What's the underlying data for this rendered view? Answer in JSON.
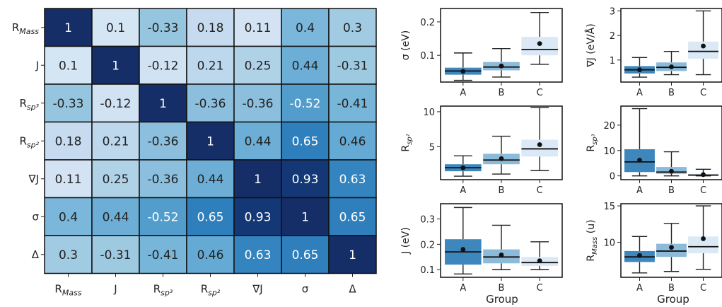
{
  "chart_data": [
    {
      "type": "heatmap",
      "row_labels": [
        "R_Mass",
        "J",
        "R_sp³",
        "R_sp²",
        "∇J",
        "σ",
        "Δ"
      ],
      "col_labels": [
        "R_Mass",
        "J",
        "R_sp³",
        "R_sp²",
        "∇J",
        "σ",
        "Δ"
      ],
      "values": [
        [
          1,
          0.1,
          -0.33,
          0.18,
          0.11,
          0.4,
          0.3
        ],
        [
          0.1,
          1,
          -0.12,
          0.21,
          0.25,
          0.44,
          -0.31
        ],
        [
          -0.33,
          -0.12,
          1,
          -0.36,
          -0.36,
          -0.52,
          -0.41
        ],
        [
          0.18,
          0.21,
          -0.36,
          1,
          0.44,
          0.65,
          0.46
        ],
        [
          0.11,
          0.25,
          -0.36,
          0.44,
          1,
          0.93,
          0.63
        ],
        [
          0.4,
          0.44,
          -0.52,
          0.65,
          0.93,
          1,
          0.65
        ],
        [
          0.3,
          -0.31,
          -0.41,
          0.46,
          0.63,
          0.65,
          1
        ]
      ],
      "colormap": "Blues (absolute value)"
    },
    {
      "type": "box",
      "categories": [
        "A",
        "B",
        "C"
      ],
      "ylabel": "σ (eV)",
      "ylim": [
        0.02,
        0.24
      ],
      "yticks": [
        0.1,
        0.2
      ],
      "boxes": [
        {
          "min": 0.025,
          "q1": 0.042,
          "median": 0.053,
          "q3": 0.063,
          "max": 0.107,
          "mean": 0.052
        },
        {
          "min": 0.035,
          "q1": 0.055,
          "median": 0.065,
          "q3": 0.08,
          "max": 0.12,
          "mean": 0.068
        },
        {
          "min": 0.073,
          "q1": 0.1,
          "median": 0.117,
          "q3": 0.155,
          "max": 0.228,
          "mean": 0.135
        }
      ]
    },
    {
      "type": "box",
      "categories": [
        "A",
        "B",
        "C"
      ],
      "ylabel": "∇J (eV/Å)",
      "ylim": [
        0.1,
        3.1
      ],
      "yticks": [
        1,
        2,
        3
      ],
      "boxes": [
        {
          "min": 0.3,
          "q1": 0.45,
          "median": 0.6,
          "q3": 0.75,
          "max": 1.1,
          "mean": 0.6
        },
        {
          "min": 0.4,
          "q1": 0.55,
          "median": 0.7,
          "q3": 0.9,
          "max": 1.35,
          "mean": 0.72
        },
        {
          "min": 0.4,
          "q1": 1.05,
          "median": 1.35,
          "q3": 1.75,
          "max": 3.0,
          "mean": 1.57
        }
      ]
    },
    {
      "type": "box",
      "categories": [
        "A",
        "B",
        "C"
      ],
      "ylabel": "R_sp²",
      "ylim": [
        0.3,
        10.8
      ],
      "yticks": [
        5,
        10
      ],
      "boxes": [
        {
          "min": 0.8,
          "q1": 1.5,
          "median": 2.0,
          "q3": 2.5,
          "max": 3.7,
          "mean": 2.0
        },
        {
          "min": 1.1,
          "q1": 2.5,
          "median": 3.1,
          "q3": 4.0,
          "max": 6.5,
          "mean": 3.3
        },
        {
          "min": 1.6,
          "q1": 3.6,
          "median": 4.7,
          "q3": 6.0,
          "max": 10.6,
          "mean": 5.3
        }
      ]
    },
    {
      "type": "box",
      "categories": [
        "A",
        "B",
        "C"
      ],
      "ylabel": "R_sp³",
      "ylim": [
        -1.5,
        27.5
      ],
      "yticks": [
        0,
        10,
        20
      ],
      "boxes": [
        {
          "min": 0,
          "q1": 1.5,
          "median": 5.5,
          "q3": 10.5,
          "max": 26.5,
          "mean": 6.2
        },
        {
          "min": 0,
          "q1": 0.8,
          "median": 1.5,
          "q3": 3.5,
          "max": 9.5,
          "mean": 1.8
        },
        {
          "min": 0,
          "q1": 0.05,
          "median": 0.3,
          "q3": 0.8,
          "max": 2.6,
          "mean": 0.5
        }
      ]
    },
    {
      "type": "box",
      "categories": [
        "A",
        "B",
        "C"
      ],
      "ylabel": "J (eV)",
      "ylim": [
        0.07,
        0.36
      ],
      "yticks": [
        0.1,
        0.2,
        0.3
      ],
      "boxes": [
        {
          "min": 0.083,
          "q1": 0.12,
          "median": 0.17,
          "q3": 0.22,
          "max": 0.345,
          "mean": 0.18
        },
        {
          "min": 0.1,
          "q1": 0.125,
          "median": 0.15,
          "q3": 0.18,
          "max": 0.275,
          "mean": 0.158
        },
        {
          "min": 0.1,
          "q1": 0.115,
          "median": 0.128,
          "q3": 0.15,
          "max": 0.21,
          "mean": 0.135
        }
      ]
    },
    {
      "type": "box",
      "categories": [
        "A",
        "B",
        "C"
      ],
      "ylabel": "R_Mass (u)",
      "ylim": [
        5.2,
        15.3
      ],
      "yticks": [
        5,
        10,
        15
      ],
      "xlabel": "Group",
      "boxes": [
        {
          "min": 5.8,
          "q1": 7.3,
          "median": 8.0,
          "q3": 8.8,
          "max": 10.8,
          "mean": 8.2
        },
        {
          "min": 6.0,
          "q1": 8.0,
          "median": 8.8,
          "q3": 9.8,
          "max": 12.6,
          "mean": 9.3
        },
        {
          "min": 6.3,
          "q1": 8.5,
          "median": 9.4,
          "q3": 10.8,
          "max": 15.0,
          "mean": 10.5
        }
      ]
    }
  ],
  "box_group_xlabel": "Group",
  "box_group_xlabel_right": "Group",
  "colors": {
    "box_A": "#3d87bd",
    "box_B": "#8cbbd9",
    "box_C": "#dae9f5",
    "mean_dot": "#111111",
    "cell_text_light": "#ffffff",
    "cell_text_dark": "#222222"
  }
}
